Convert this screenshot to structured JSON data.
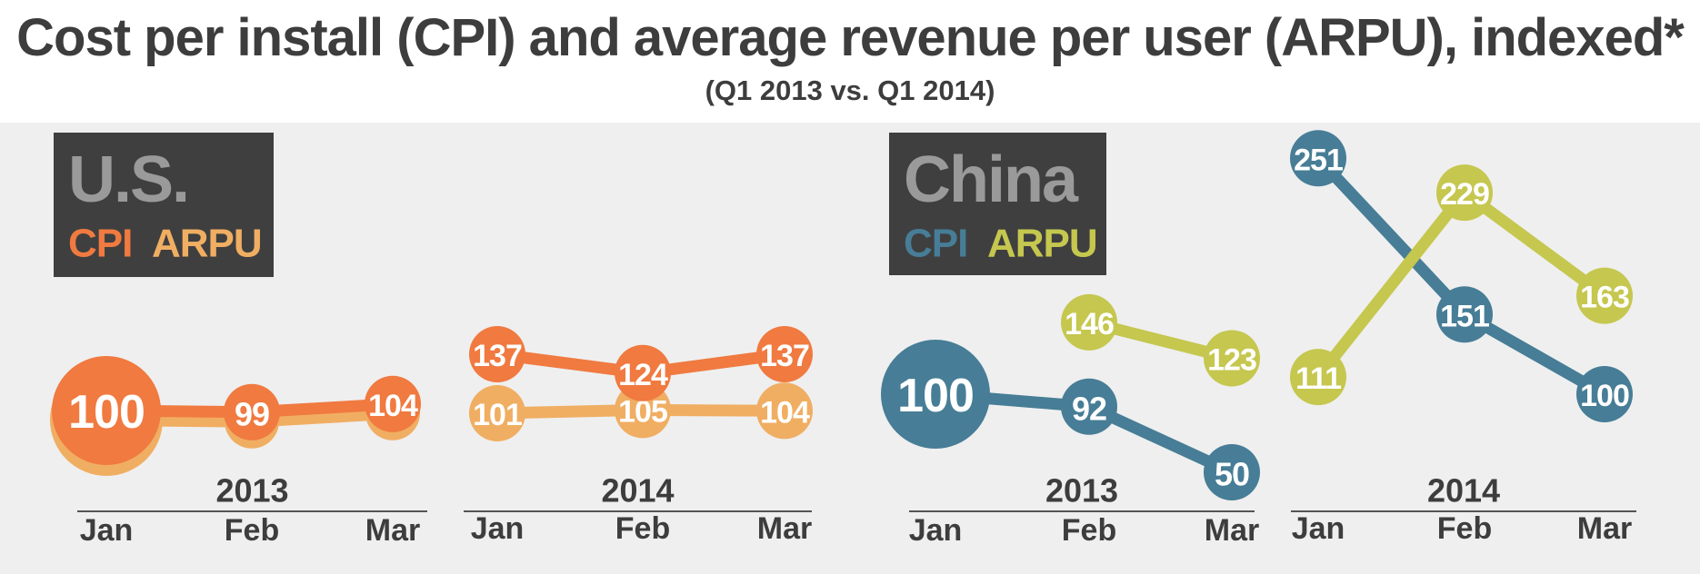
{
  "title": "Cost per install (CPI) and average revenue per user (ARPU), indexed*",
  "subtitle": "(Q1 2013 vs. Q1 2014)",
  "chart_data": [
    {
      "type": "line",
      "region": "U.S.",
      "legend": [
        "CPI",
        "ARPU"
      ],
      "colors": {
        "CPI": "#f07a40",
        "ARPU": "#f0ae63"
      },
      "groups": [
        {
          "year": "2013",
          "months": [
            "Jan",
            "Feb",
            "Mar"
          ],
          "series": [
            {
              "name": "CPI",
              "values": [
                100,
                99,
                104
              ]
            },
            {
              "name": "ARPU",
              "values": [
                null,
                null,
                null
              ]
            }
          ]
        },
        {
          "year": "2014",
          "months": [
            "Jan",
            "Feb",
            "Mar"
          ],
          "series": [
            {
              "name": "CPI",
              "values": [
                137,
                124,
                137
              ]
            },
            {
              "name": "ARPU",
              "values": [
                101,
                105,
                104
              ]
            }
          ]
        }
      ]
    },
    {
      "type": "line",
      "region": "China",
      "legend": [
        "CPI",
        "ARPU"
      ],
      "colors": {
        "CPI": "#477d96",
        "ARPU": "#c5c74f"
      },
      "groups": [
        {
          "year": "2013",
          "months": [
            "Jan",
            "Feb",
            "Mar"
          ],
          "series": [
            {
              "name": "CPI",
              "values": [
                100,
                92,
                50
              ]
            },
            {
              "name": "ARPU",
              "values": [
                null,
                146,
                123
              ]
            }
          ]
        },
        {
          "year": "2014",
          "months": [
            "Jan",
            "Feb",
            "Mar"
          ],
          "series": [
            {
              "name": "CPI",
              "values": [
                251,
                151,
                100
              ]
            },
            {
              "name": "ARPU",
              "values": [
                111,
                229,
                163
              ]
            }
          ]
        }
      ]
    }
  ]
}
